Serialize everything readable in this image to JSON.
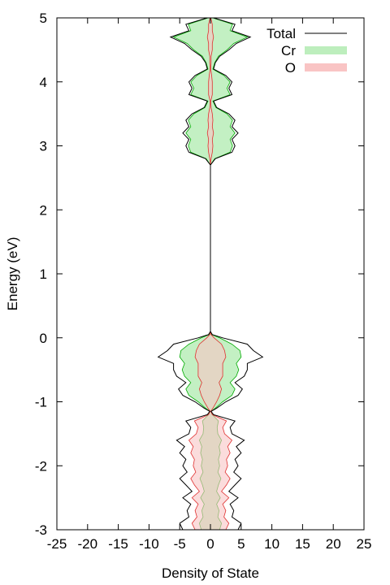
{
  "chart_data": {
    "type": "area",
    "orientation": "vertical-energy",
    "title": "",
    "xlabel": "Density of State",
    "ylabel": "Energy (eV)",
    "xlim": [
      -25,
      25
    ],
    "ylim": [
      -3,
      5
    ],
    "x_ticks": [
      -25,
      -20,
      -15,
      -10,
      -5,
      0,
      5,
      10,
      15,
      20,
      25
    ],
    "y_ticks": [
      -3,
      -2,
      -1,
      0,
      1,
      2,
      3,
      4,
      5
    ],
    "legend_position": "top-right",
    "symmetric_about_zero": true,
    "series": [
      {
        "name": "Total",
        "style": "line",
        "color": "#000000",
        "energy": [
          -3.0,
          -2.9,
          -2.8,
          -2.7,
          -2.6,
          -2.5,
          -2.4,
          -2.3,
          -2.2,
          -2.1,
          -2.0,
          -1.9,
          -1.8,
          -1.7,
          -1.6,
          -1.5,
          -1.4,
          -1.3,
          -1.2,
          -1.15,
          -1.1,
          -1.0,
          -0.9,
          -0.8,
          -0.7,
          -0.6,
          -0.5,
          -0.4,
          -0.3,
          -0.2,
          -0.1,
          0.0,
          0.05,
          0.1,
          2.7,
          2.8,
          2.9,
          3.0,
          3.1,
          3.2,
          3.3,
          3.4,
          3.5,
          3.6,
          3.7,
          3.8,
          3.9,
          4.0,
          4.1,
          4.2,
          4.3,
          4.4,
          4.5,
          4.6,
          4.7,
          4.8,
          4.9,
          5.0
        ],
        "dos": [
          4.5,
          5.0,
          3.5,
          3.8,
          3.2,
          4.5,
          3.0,
          4.0,
          5.0,
          3.8,
          4.5,
          4.0,
          5.0,
          4.2,
          5.5,
          3.5,
          3.2,
          4.0,
          0.5,
          0.1,
          1.0,
          2.5,
          4.5,
          5.2,
          4.0,
          5.5,
          6.0,
          6.0,
          8.5,
          7.0,
          6.0,
          2.0,
          0.3,
          0.0,
          0.0,
          0.8,
          3.5,
          4.0,
          3.5,
          4.5,
          3.5,
          4.0,
          3.0,
          1.0,
          0.5,
          3.5,
          3.0,
          3.5,
          2.5,
          0.5,
          0.8,
          1.5,
          3.0,
          4.2,
          6.5,
          3.5,
          4.0,
          0.5
        ]
      },
      {
        "name": "Cr",
        "style": "fill",
        "color": "#bdeebd",
        "stroke": "#00aa00",
        "energy": [
          -3.0,
          -2.9,
          -2.8,
          -2.7,
          -2.6,
          -2.5,
          -2.4,
          -2.3,
          -2.2,
          -2.1,
          -2.0,
          -1.9,
          -1.8,
          -1.7,
          -1.6,
          -1.5,
          -1.4,
          -1.3,
          -1.2,
          -1.15,
          -1.1,
          -1.0,
          -0.9,
          -0.8,
          -0.7,
          -0.6,
          -0.5,
          -0.4,
          -0.3,
          -0.2,
          -0.1,
          0.0,
          0.05,
          0.1,
          2.7,
          2.8,
          2.9,
          3.0,
          3.1,
          3.2,
          3.3,
          3.4,
          3.5,
          3.6,
          3.7,
          3.8,
          3.9,
          4.0,
          4.1,
          4.2,
          4.3,
          4.4,
          4.5,
          4.6,
          4.7,
          4.8,
          4.9,
          5.0
        ],
        "dos": [
          1.5,
          1.8,
          1.2,
          1.4,
          1.0,
          1.6,
          1.0,
          1.3,
          1.7,
          1.2,
          1.5,
          1.3,
          1.6,
          1.4,
          1.8,
          1.2,
          1.1,
          1.3,
          0.3,
          0.1,
          0.8,
          2.0,
          3.5,
          4.0,
          3.2,
          4.2,
          4.6,
          4.2,
          5.0,
          4.8,
          3.5,
          1.5,
          0.2,
          0.0,
          0.0,
          0.7,
          3.2,
          3.6,
          3.2,
          4.0,
          3.2,
          3.6,
          2.7,
          0.9,
          0.4,
          3.2,
          2.7,
          3.2,
          2.2,
          0.4,
          0.7,
          1.3,
          2.7,
          3.8,
          6.0,
          3.2,
          3.6,
          0.4
        ]
      },
      {
        "name": "O",
        "style": "fill",
        "color": "#f9c4c4",
        "stroke": "#e03030",
        "energy": [
          -3.0,
          -2.9,
          -2.8,
          -2.7,
          -2.6,
          -2.5,
          -2.4,
          -2.3,
          -2.2,
          -2.1,
          -2.0,
          -1.9,
          -1.8,
          -1.7,
          -1.6,
          -1.5,
          -1.4,
          -1.3,
          -1.2,
          -1.15,
          -1.1,
          -1.0,
          -0.9,
          -0.8,
          -0.7,
          -0.6,
          -0.5,
          -0.4,
          -0.3,
          -0.2,
          -0.1,
          0.0,
          0.05,
          0.1,
          2.7,
          2.8,
          2.9,
          3.0,
          3.1,
          3.2,
          3.3,
          3.4,
          3.5,
          3.6,
          3.7,
          3.8,
          3.9,
          4.0,
          4.1,
          4.2,
          4.3,
          4.4,
          4.5,
          4.6,
          4.7,
          4.8,
          4.9,
          5.0
        ],
        "dos": [
          2.5,
          3.0,
          2.2,
          2.5,
          2.0,
          3.0,
          1.8,
          2.6,
          3.2,
          2.4,
          2.8,
          2.6,
          3.2,
          2.8,
          3.5,
          2.3,
          2.0,
          2.6,
          0.3,
          0.05,
          0.4,
          1.0,
          1.5,
          1.8,
          1.4,
          2.0,
          2.0,
          2.0,
          2.5,
          2.3,
          1.8,
          0.6,
          0.1,
          0.0,
          0.0,
          0.1,
          0.3,
          0.4,
          0.3,
          0.5,
          0.3,
          0.4,
          0.3,
          0.1,
          0.05,
          0.3,
          0.3,
          0.3,
          0.2,
          0.05,
          0.1,
          0.1,
          0.3,
          0.3,
          0.5,
          0.3,
          0.3,
          0.05
        ]
      }
    ]
  }
}
